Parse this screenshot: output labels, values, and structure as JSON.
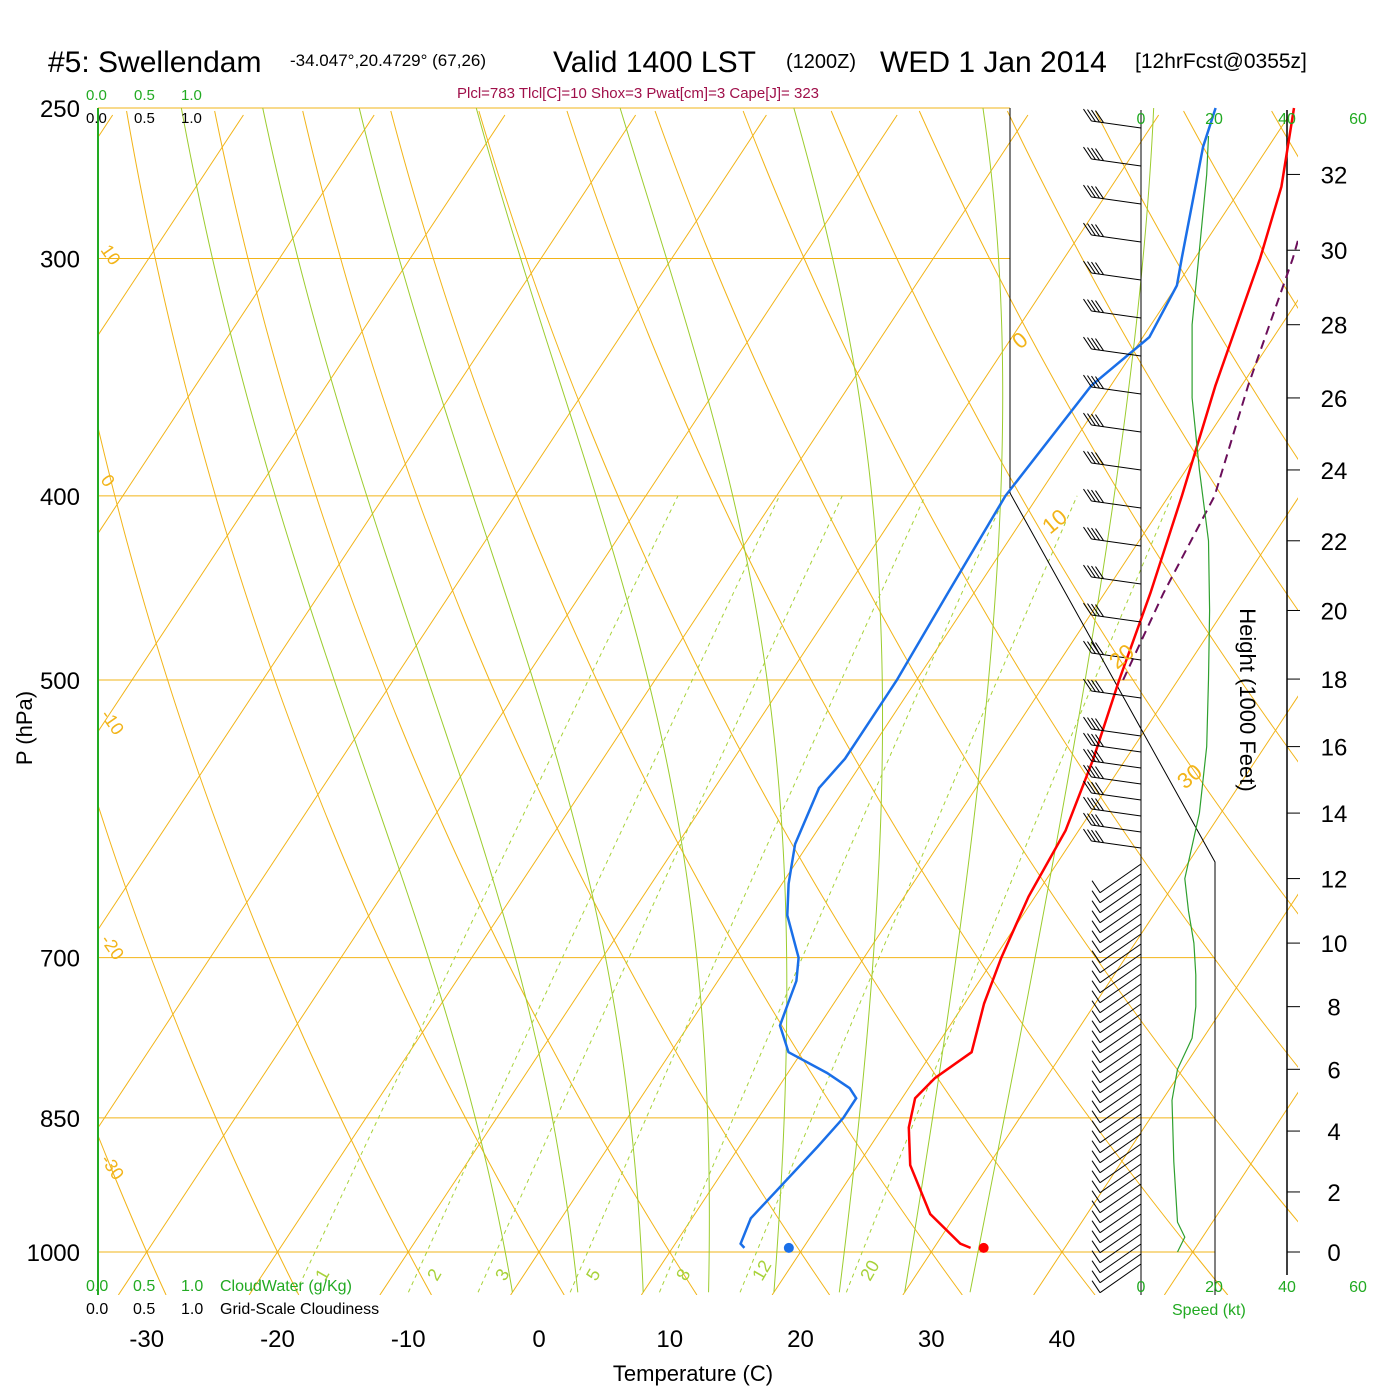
{
  "header": {
    "station": "#5: Swellendam",
    "coords": "-34.047°,20.4729° (67,26)",
    "valid": "Valid 1400 LST",
    "utc": "(1200Z)",
    "date": "WED 1 Jan 2014",
    "forecast": "[12hrFcst@0355z]",
    "indices": "Plcl=783 Tlcl[C]=10 Shox=3 Pwat[cm]=3 Cape[J]= 323"
  },
  "axes": {
    "y_label": "P (hPa)",
    "x_label": "Temperature (C)",
    "height_label": "Height (1000 Feet)",
    "speed_label": "Speed (kt)",
    "cloudwater_label": "CloudWater (g/Kg)",
    "cloudiness_label": "Grid-Scale Cloudiness",
    "scale_0": "0.0",
    "scale_05": "0.5",
    "scale_1": "1.0"
  },
  "colors": {
    "temperature": "#ff0000",
    "dewpoint": "#1a6fe8",
    "parcel": "#6b0e5a",
    "isotherm": "#f2b418",
    "mixing_ratio": "#a8d23a",
    "moist_adiabat": "#9ccc2e",
    "speed_profile": "#2ea02e",
    "labels_green": "#22aa22"
  },
  "chart_data": {
    "type": "line",
    "title": "#5: Swellendam",
    "xlabel": "Temperature (C)",
    "ylabel": "P (hPa)",
    "x_ticks": [
      -30,
      -20,
      -10,
      0,
      10,
      20,
      30,
      40
    ],
    "p_ticks": [
      1000,
      850,
      700,
      500,
      400,
      300,
      250
    ],
    "height_ticks": [
      0,
      2,
      4,
      6,
      8,
      10,
      12,
      14,
      16,
      18,
      20,
      22,
      24,
      26,
      28,
      30,
      32
    ],
    "speed_ticks": [
      0,
      20,
      40,
      60
    ],
    "isotherm_labels": [
      30,
      20,
      10,
      0,
      -10,
      -20,
      -30
    ],
    "isotherm_label_text": [
      "30",
      "20",
      "10",
      "0",
      "-10",
      "-20",
      "-30"
    ],
    "right_isotherm_labels": [
      "0",
      "10",
      "20",
      "30"
    ],
    "left_isotherm_labels": [
      "10",
      "0",
      "-10",
      "-20",
      "-30"
    ],
    "mixing_ratio_labels": [
      "1",
      "2",
      "3",
      "5",
      "8",
      "12",
      "20"
    ],
    "series": [
      {
        "name": "Temperature",
        "points": [
          [
            32.8,
            995
          ],
          [
            31.8,
            990
          ],
          [
            28,
            955
          ],
          [
            24,
            900
          ],
          [
            22,
            860
          ],
          [
            21,
            830
          ],
          [
            21.5,
            810
          ],
          [
            23,
            785
          ],
          [
            21.5,
            740
          ],
          [
            20.5,
            700
          ],
          [
            19.5,
            650
          ],
          [
            19,
            600
          ],
          [
            17.5,
            550
          ],
          [
            15.5,
            500
          ],
          [
            13.5,
            450
          ],
          [
            11,
            400
          ],
          [
            8,
            350
          ],
          [
            5,
            300
          ],
          [
            3,
            275
          ],
          [
            0,
            250
          ]
        ]
      },
      {
        "name": "Dewpoint",
        "points": [
          [
            15.5,
            995
          ],
          [
            15,
            990
          ],
          [
            14.5,
            960
          ],
          [
            16,
            880
          ],
          [
            16.5,
            850
          ],
          [
            16.5,
            830
          ],
          [
            15.5,
            820
          ],
          [
            13,
            805
          ],
          [
            9,
            785
          ],
          [
            7,
            760
          ],
          [
            6.5,
            740
          ],
          [
            6,
            720
          ],
          [
            5,
            700
          ],
          [
            2,
            665
          ],
          [
            0.5,
            640
          ],
          [
            -1,
            610
          ],
          [
            -2,
            570
          ],
          [
            -1.5,
            550
          ],
          [
            -1.5,
            500
          ],
          [
            -2,
            450
          ],
          [
            -2.5,
            400
          ],
          [
            -1.5,
            350
          ],
          [
            0.5,
            330
          ],
          [
            0,
            310
          ],
          [
            -1,
            300
          ],
          [
            -5,
            262
          ],
          [
            -6,
            250
          ]
        ]
      },
      {
        "name": "Parcel",
        "points": [
          [
            15.8,
            500
          ],
          [
            14.5,
            450
          ],
          [
            13.5,
            400
          ],
          [
            10.5,
            350
          ],
          [
            7.5,
            300
          ],
          [
            5,
            270
          ],
          [
            1,
            250
          ]
        ]
      }
    ],
    "surface_temperature": 33.8,
    "surface_dewpoint": 18.9,
    "speed_profile": [
      [
        10,
        0
      ],
      [
        12,
        0.5
      ],
      [
        10,
        1
      ],
      [
        9,
        3
      ],
      [
        8.5,
        5
      ],
      [
        10,
        6
      ],
      [
        14,
        7
      ],
      [
        15,
        8
      ],
      [
        15,
        9
      ],
      [
        14.5,
        10
      ],
      [
        13,
        11
      ],
      [
        12,
        12
      ],
      [
        16,
        14
      ],
      [
        18,
        16
      ],
      [
        18.5,
        18
      ],
      [
        18.8,
        20
      ],
      [
        18.5,
        22
      ],
      [
        16,
        24
      ],
      [
        14,
        26
      ],
      [
        14,
        28
      ],
      [
        16,
        30
      ],
      [
        18,
        32
      ],
      [
        18.5,
        33
      ]
    ]
  }
}
